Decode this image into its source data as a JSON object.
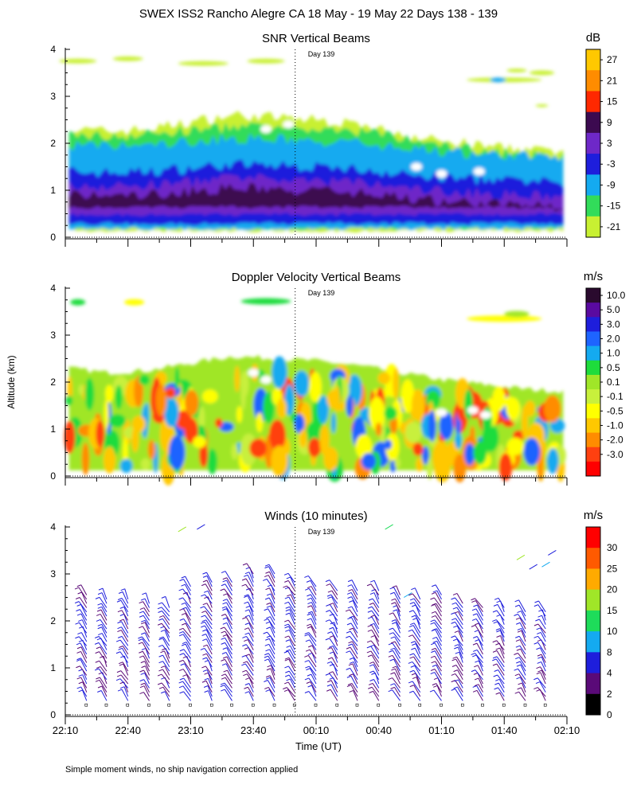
{
  "page_title": "SWEX ISS2 Rancho Alegre CA  18 May - 19 May 22 Days 138 - 139",
  "footer_note": "Simple moment winds, no ship navigation correction applied",
  "shared_axes": {
    "ylabel": "Altitude (km)",
    "xlabel": "Time (UT)",
    "x_ticks": [
      "22:10",
      "22:40",
      "23:10",
      "23:40",
      "00:10",
      "00:40",
      "01:10",
      "01:40",
      "02:10"
    ],
    "y_ticks": [
      "0",
      "1",
      "2",
      "3",
      "4"
    ]
  },
  "chart_data": [
    {
      "type": "heatmap",
      "title": "SNR Vertical Beams",
      "day_marker": "Day 139",
      "xlabel": "Time (UT)",
      "ylabel": "Altitude (km)",
      "x_range_hours": [
        0,
        4
      ],
      "day_boundary_hours": 1.833,
      "ylim": [
        0,
        4
      ],
      "colorbar_unit": "dB",
      "colorbar_labels": [
        "27",
        "21",
        "15",
        "9",
        "3",
        "-3",
        "-9",
        "-15",
        "-21"
      ],
      "colorbar_colors": [
        "#ffc800",
        "#ff8c00",
        "#ff2800",
        "#3c0a50",
        "#6e28c8",
        "#1e1edc",
        "#14aaf0",
        "#32dc5a",
        "#c8f032"
      ],
      "top_of_echo_km": [
        2.3,
        2.25,
        2.3,
        2.45,
        2.6,
        2.55,
        2.5,
        2.4,
        2.2,
        2.05,
        1.95,
        1.85,
        1.8
      ],
      "layers": [
        {
          "label": "-21",
          "from_km": 0.1,
          "to_km": "top"
        },
        {
          "label": "-15",
          "from_km": 0.15,
          "to_km": 2.15
        },
        {
          "label": "-9",
          "from_km": 0.15,
          "to_km": 1.9
        },
        {
          "label": "-3",
          "from_km": 0.25,
          "to_km": 1.35
        },
        {
          "label": "3",
          "from_km": 0.45,
          "to_km": 1.05
        },
        {
          "label": "9",
          "from_km": 0.6,
          "to_km": 0.85
        }
      ]
    },
    {
      "type": "heatmap",
      "title": "Doppler Velocity Vertical Beams",
      "day_marker": "Day 139",
      "xlabel": "Time (UT)",
      "ylabel": "Altitude (km)",
      "x_range_hours": [
        0,
        4
      ],
      "day_boundary_hours": 1.833,
      "ylim": [
        0,
        4
      ],
      "colorbar_unit": "m/s",
      "colorbar_labels": [
        "10.0",
        "5.0",
        "3.0",
        "2.0",
        "1.0",
        "0.5",
        "0.1",
        "-0.1",
        "-0.5",
        "-1.0",
        "-2.0",
        "-3.0"
      ],
      "colorbar_colors": [
        "#2a0a2e",
        "#5a0aa0",
        "#1e1edc",
        "#1e64ff",
        "#14aaf0",
        "#1edc3c",
        "#a0e628",
        "#c8f03c",
        "#ffff00",
        "#ffc800",
        "#ff8c00",
        "#ff4010",
        "#ff0000"
      ],
      "top_of_echo_km": [
        2.3,
        2.2,
        2.25,
        2.4,
        2.55,
        2.5,
        2.45,
        2.35,
        2.2,
        2.05,
        1.95,
        1.85,
        1.8
      ],
      "dominant_value_range_m_s": [
        -1.0,
        0.5
      ]
    },
    {
      "type": "scatter",
      "subtype": "wind_barbs",
      "title": "Winds (10 minutes)",
      "day_marker": "Day 139",
      "xlabel": "Time (UT)",
      "ylabel": "Altitude (km)",
      "x_range_hours": [
        0,
        4
      ],
      "day_boundary_hours": 1.833,
      "ylim": [
        0,
        4
      ],
      "colorbar_unit": "m/s",
      "colorbar_labels": [
        "30",
        "25",
        "20",
        "15",
        "10",
        "8",
        "4",
        "2",
        "0"
      ],
      "colorbar_colors": [
        "#ff0000",
        "#ff5a00",
        "#ffaa00",
        "#a0e628",
        "#1edc5a",
        "#14aaf0",
        "#1e1edc",
        "#5a0a78",
        "#000000"
      ],
      "profile_times_hours": [
        0.17,
        0.33,
        0.5,
        0.67,
        0.83,
        1.0,
        1.17,
        1.33,
        1.5,
        1.67,
        1.83,
        2.0,
        2.17,
        2.33,
        2.5,
        2.67,
        2.83,
        3.0,
        3.17,
        3.33,
        3.5,
        3.67,
        3.83
      ],
      "profile_top_km": [
        2.6,
        2.5,
        2.5,
        2.4,
        2.3,
        2.8,
        2.9,
        2.9,
        3.0,
        3.0,
        2.9,
        2.8,
        2.7,
        2.7,
        2.7,
        2.6,
        2.5,
        2.6,
        2.4,
        2.3,
        2.3,
        2.2,
        2.2
      ]
    }
  ]
}
